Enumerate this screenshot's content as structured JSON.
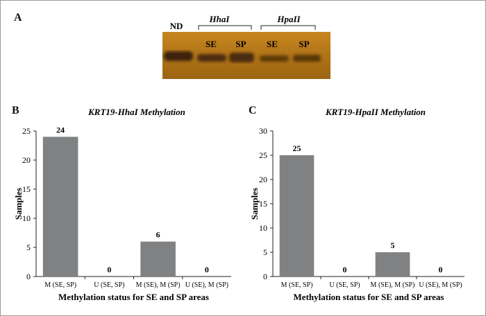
{
  "figure": {
    "panel_a_label": "A",
    "panel_b_label": "B",
    "panel_c_label": "C"
  },
  "gel": {
    "lanes": [
      "ND",
      "SE",
      "SP",
      "SE",
      "SP"
    ],
    "group1": "HhaI",
    "group2": "HpaII",
    "background_color": "#b07418",
    "band_color": "#3d2208"
  },
  "chart_data": [
    {
      "type": "bar",
      "title": "KRT19-HhaI Methylation",
      "categories": [
        "M (SE, SP)",
        "U (SE, SP)",
        "M (SE), M (SP)",
        "U (SE), M (SP)"
      ],
      "values": [
        24,
        0,
        6,
        0
      ],
      "data_labels": [
        "24",
        "0",
        "6",
        "0"
      ],
      "xlabel": "Methylation status for SE and SP areas",
      "ylabel": "Samples",
      "ylim": [
        0,
        25
      ],
      "yticks": [
        "0",
        "5",
        "10",
        "15",
        "20",
        "25"
      ],
      "grid": false,
      "bar_color": "#808183"
    },
    {
      "type": "bar",
      "title": "KRT19-HpaII Methylation",
      "categories": [
        "M (SE, SP)",
        "U (SE, SP)",
        "M (SE), M (SP)",
        "U (SE), M (SP)"
      ],
      "values": [
        25,
        0,
        5,
        0
      ],
      "data_labels": [
        "25",
        "0",
        "5",
        "0"
      ],
      "xlabel": "Methylation status for SE and SP areas",
      "ylabel": "Samples",
      "ylim": [
        0,
        30
      ],
      "yticks": [
        "0",
        "5",
        "10",
        "15",
        "20",
        "25",
        "30"
      ],
      "grid": false,
      "bar_color": "#808183"
    }
  ]
}
